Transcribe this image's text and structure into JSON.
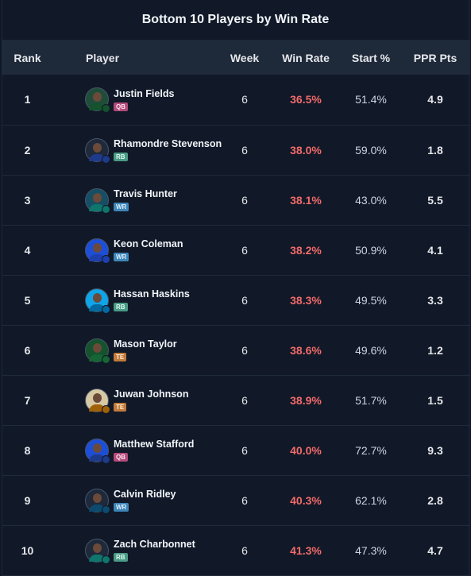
{
  "title": "Bottom 10 Players by Win Rate",
  "columns": {
    "rank": "Rank",
    "player": "Player",
    "week": "Week",
    "win_rate": "Win Rate",
    "start_pct": "Start %",
    "ppr_pts": "PPR Pts"
  },
  "colors": {
    "win_rate_text": "#f26b6b",
    "pos_QB": "#b14a7a",
    "pos_RB": "#4a9a85",
    "pos_WR": "#3e86b8",
    "pos_TE": "#c27b3a"
  },
  "rows": [
    {
      "rank": "1",
      "name": "Justin Fields",
      "pos": "QB",
      "week": "6",
      "win_rate": "36.5%",
      "start_pct": "51.4%",
      "ppr": "4.9",
      "avatar_bg": "#1f4d3a",
      "team_color": "#14532d"
    },
    {
      "rank": "2",
      "name": "Rhamondre Stevenson",
      "pos": "RB",
      "week": "6",
      "win_rate": "38.0%",
      "start_pct": "59.0%",
      "ppr": "1.8",
      "avatar_bg": "#1e293b",
      "team_color": "#1e3a8a"
    },
    {
      "rank": "3",
      "name": "Travis Hunter",
      "pos": "WR",
      "week": "6",
      "win_rate": "38.1%",
      "start_pct": "43.0%",
      "ppr": "5.5",
      "avatar_bg": "#164e63",
      "team_color": "#0f766e"
    },
    {
      "rank": "4",
      "name": "Keon Coleman",
      "pos": "WR",
      "week": "6",
      "win_rate": "38.2%",
      "start_pct": "50.9%",
      "ppr": "4.1",
      "avatar_bg": "#1d4ed8",
      "team_color": "#1e40af"
    },
    {
      "rank": "5",
      "name": "Hassan Haskins",
      "pos": "RB",
      "week": "6",
      "win_rate": "38.3%",
      "start_pct": "49.5%",
      "ppr": "3.3",
      "avatar_bg": "#0ea5e9",
      "team_color": "#0369a1"
    },
    {
      "rank": "6",
      "name": "Mason Taylor",
      "pos": "TE",
      "week": "6",
      "win_rate": "38.6%",
      "start_pct": "49.6%",
      "ppr": "1.2",
      "avatar_bg": "#14532d",
      "team_color": "#166534"
    },
    {
      "rank": "7",
      "name": "Juwan Johnson",
      "pos": "TE",
      "week": "6",
      "win_rate": "38.9%",
      "start_pct": "51.7%",
      "ppr": "1.5",
      "avatar_bg": "#d6c9a4",
      "team_color": "#a16207"
    },
    {
      "rank": "8",
      "name": "Matthew Stafford",
      "pos": "QB",
      "week": "6",
      "win_rate": "40.0%",
      "start_pct": "72.7%",
      "ppr": "9.3",
      "avatar_bg": "#1d4ed8",
      "team_color": "#1e3a8a"
    },
    {
      "rank": "9",
      "name": "Calvin Ridley",
      "pos": "WR",
      "week": "6",
      "win_rate": "40.3%",
      "start_pct": "62.1%",
      "ppr": "2.8",
      "avatar_bg": "#1e293b",
      "team_color": "#0c4a6e"
    },
    {
      "rank": "10",
      "name": "Zach Charbonnet",
      "pos": "RB",
      "week": "6",
      "win_rate": "41.3%",
      "start_pct": "47.3%",
      "ppr": "4.7",
      "avatar_bg": "#1e293b",
      "team_color": "#0f766e"
    }
  ]
}
